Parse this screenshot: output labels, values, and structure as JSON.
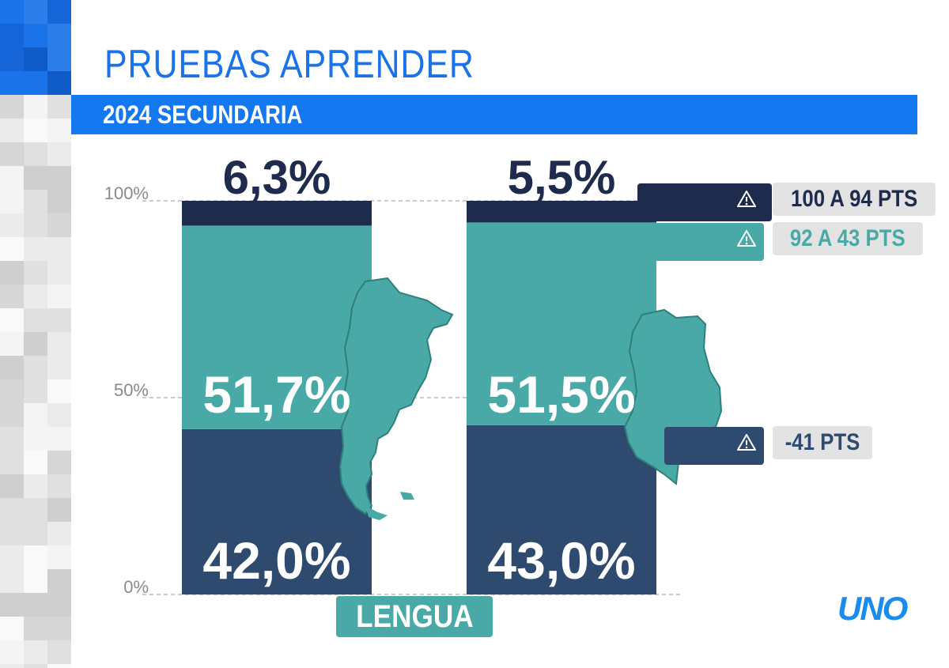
{
  "header": {
    "title": "PRUEBAS APRENDER",
    "subtitle": "2024 SECUNDARIA"
  },
  "brand": {
    "logo": "UNO"
  },
  "subject": "LENGUA",
  "thresholds": {
    "top": "100 A 94 PTS",
    "mid": "92 A 43 PTS",
    "bottom": "-41 PTS",
    "icon": "warning-icon"
  },
  "colors": {
    "top": "#1f2b4d",
    "mid": "#48a9a6",
    "bottom": "#2e4a6e",
    "accent": "#1479f0"
  },
  "chart_data": {
    "type": "bar",
    "stacked": true,
    "categories": [
      "",
      ""
    ],
    "ylim": [
      0,
      100
    ],
    "yticks": [
      "0%",
      "50%",
      "100%"
    ],
    "grid": true,
    "series": [
      {
        "values": [
          42.0,
          43.0
        ],
        "labels": [
          "42,0%",
          "43,0%"
        ]
      },
      {
        "values": [
          51.7,
          51.5
        ],
        "labels": [
          "51,7%",
          "51,5%"
        ]
      },
      {
        "values": [
          6.3,
          5.5
        ],
        "labels": [
          "6,3%",
          "5,5%"
        ]
      }
    ]
  }
}
